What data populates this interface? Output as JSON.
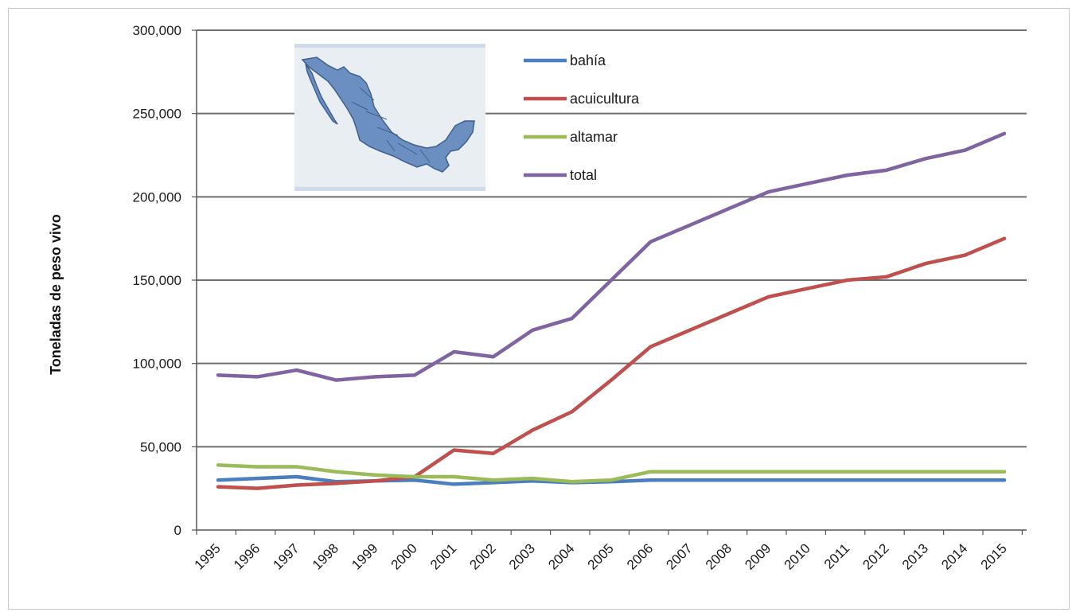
{
  "chart_data": {
    "type": "line",
    "title": "",
    "xlabel": "",
    "ylabel": "Toneladas de peso vivo",
    "ylim": [
      0,
      300000
    ],
    "yticks": [
      "0",
      "50,000",
      "100,000",
      "150,000",
      "200,000",
      "250,000",
      "300,000"
    ],
    "grid": true,
    "legend_position": "top",
    "categories": [
      "1995",
      "1996",
      "1997",
      "1998",
      "1999",
      "2000",
      "2001",
      "2002",
      "2003",
      "2004",
      "2005",
      "2006",
      "2007",
      "2008",
      "2009",
      "2010",
      "2011",
      "2012",
      "2013",
      "2014",
      "2015"
    ],
    "series": [
      {
        "name": "bahía",
        "color": "#4a7ebf",
        "values": [
          30000,
          31000,
          32000,
          29000,
          29500,
          30000,
          27500,
          28500,
          29500,
          28500,
          29000,
          30000,
          30000,
          30000,
          30000,
          30000,
          30000,
          30000,
          30000,
          30000,
          30000
        ]
      },
      {
        "name": "acuicultura",
        "color": "#c0504d",
        "values": [
          26000,
          25000,
          27000,
          28000,
          29500,
          32000,
          48000,
          46000,
          60000,
          71000,
          90000,
          110000,
          120000,
          130000,
          140000,
          145000,
          150000,
          152000,
          160000,
          165000,
          175000
        ]
      },
      {
        "name": "altamar",
        "color": "#9bbb59",
        "values": [
          39000,
          38000,
          38000,
          35000,
          33000,
          32000,
          32000,
          30000,
          31000,
          29000,
          30000,
          35000,
          35000,
          35000,
          35000,
          35000,
          35000,
          35000,
          35000,
          35000,
          35000
        ]
      },
      {
        "name": "total",
        "color": "#8064a2",
        "values": [
          93000,
          92000,
          96000,
          90000,
          92000,
          93000,
          107000,
          104000,
          120000,
          127000,
          150000,
          173000,
          183000,
          193000,
          203000,
          208000,
          213000,
          216000,
          223000,
          228000,
          238000
        ]
      }
    ],
    "inset": {
      "name": "mexico-map-icon"
    }
  }
}
